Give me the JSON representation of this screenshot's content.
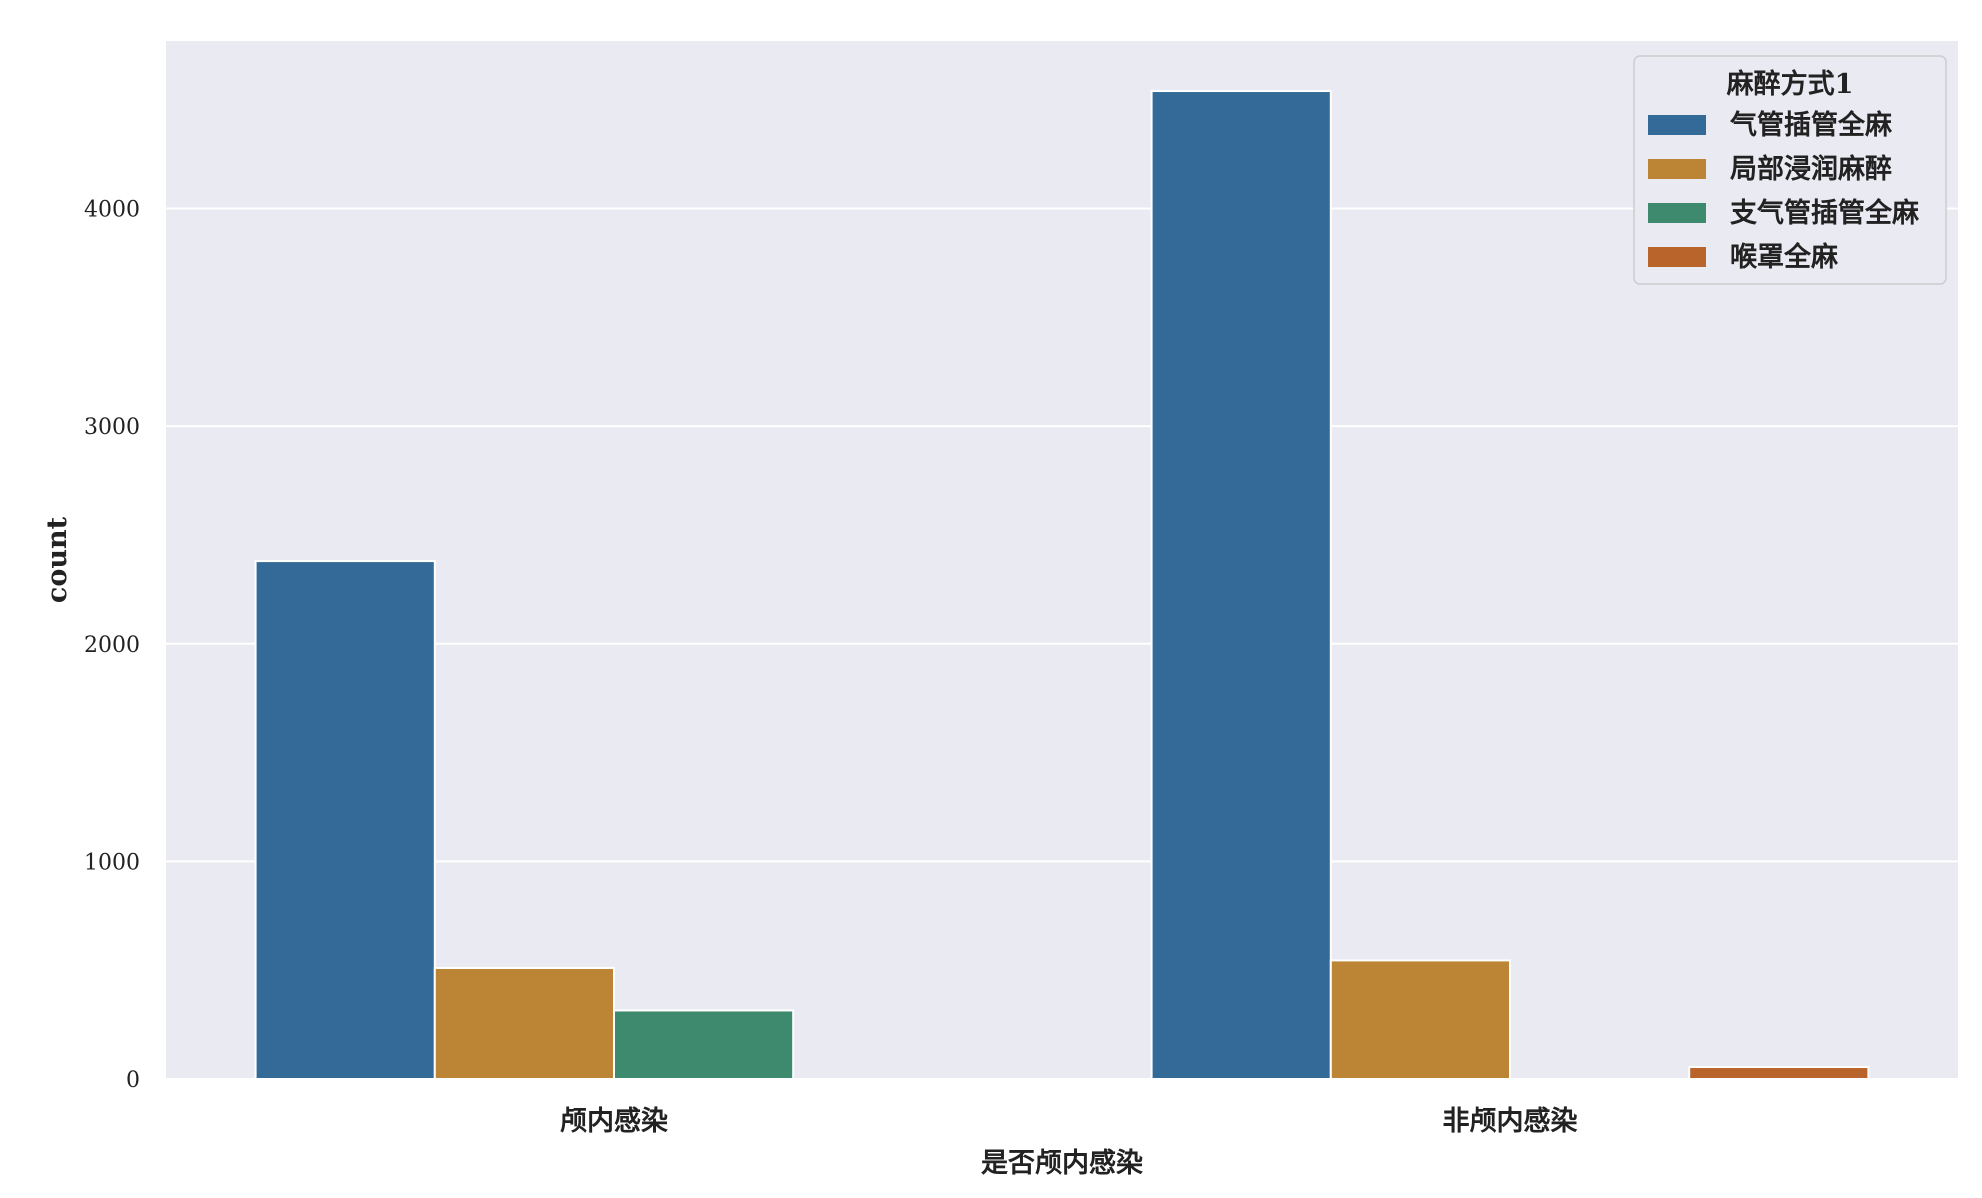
{
  "chart_data": {
    "type": "bar",
    "title": "",
    "xlabel": "是否颅内感染",
    "ylabel": "count",
    "categories": [
      "颅内感染",
      "非颅内感染"
    ],
    "series": [
      {
        "name": "气管插管全麻",
        "values": [
          2380,
          4540
        ]
      },
      {
        "name": "局部浸润麻醉",
        "values": [
          510,
          545
        ]
      },
      {
        "name": "支气管插管全麻",
        "values": [
          315,
          0
        ]
      },
      {
        "name": "喉罩全麻",
        "values": [
          0,
          55
        ]
      }
    ],
    "ylim": [
      0,
      4770
    ],
    "yticks": [
      0,
      1000,
      2000,
      3000,
      4000
    ],
    "grid": true,
    "legend": {
      "title": "麻醉方式1",
      "placement": "top-right"
    }
  },
  "colors": {
    "background": "#EAEAF2",
    "grid": "#FFFFFF",
    "series": [
      "#336A98",
      "#BB8535",
      "#3E8A6E",
      "#B8642B"
    ]
  }
}
